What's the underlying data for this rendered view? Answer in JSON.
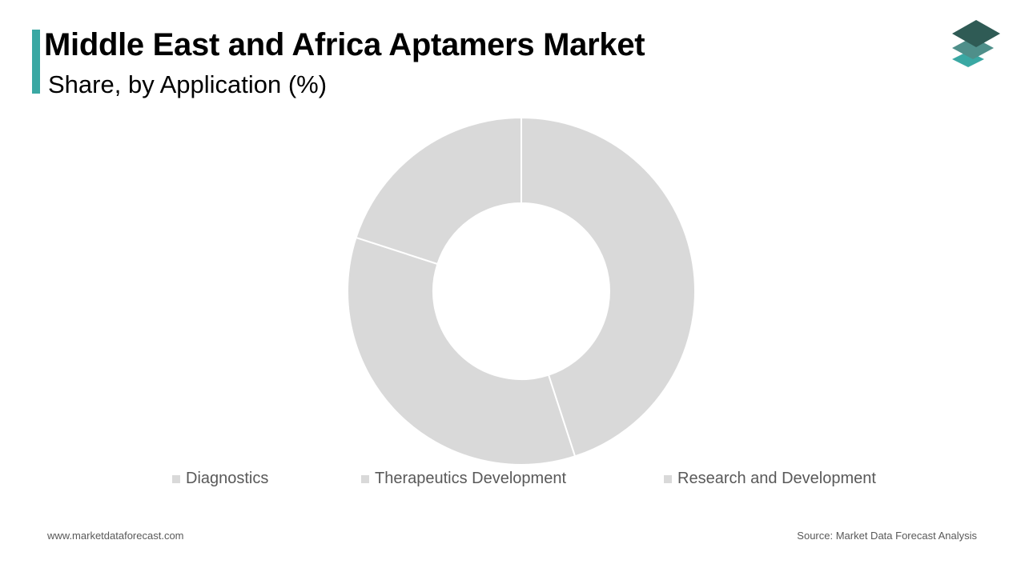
{
  "header": {
    "title": "Middle East and Africa Aptamers Market",
    "subtitle": "Share, by Application (%)",
    "accent_color": "#3aa8a3",
    "logo_icon": "stacked-layers-icon"
  },
  "chart_data": {
    "type": "donut",
    "title": "Middle East and Africa Aptamers Market",
    "subtitle": "Share, by Application (%)",
    "slice_color": "#d9d9d9",
    "legend_position": "bottom",
    "series": [
      {
        "name": "Diagnostics",
        "value": 45
      },
      {
        "name": "Therapeutics Development",
        "value": 35
      },
      {
        "name": "Research and Development",
        "value": 20
      }
    ]
  },
  "footer": {
    "website": "www.marketdataforecast.com",
    "source": "Source: Market Data Forecast Analysis"
  }
}
